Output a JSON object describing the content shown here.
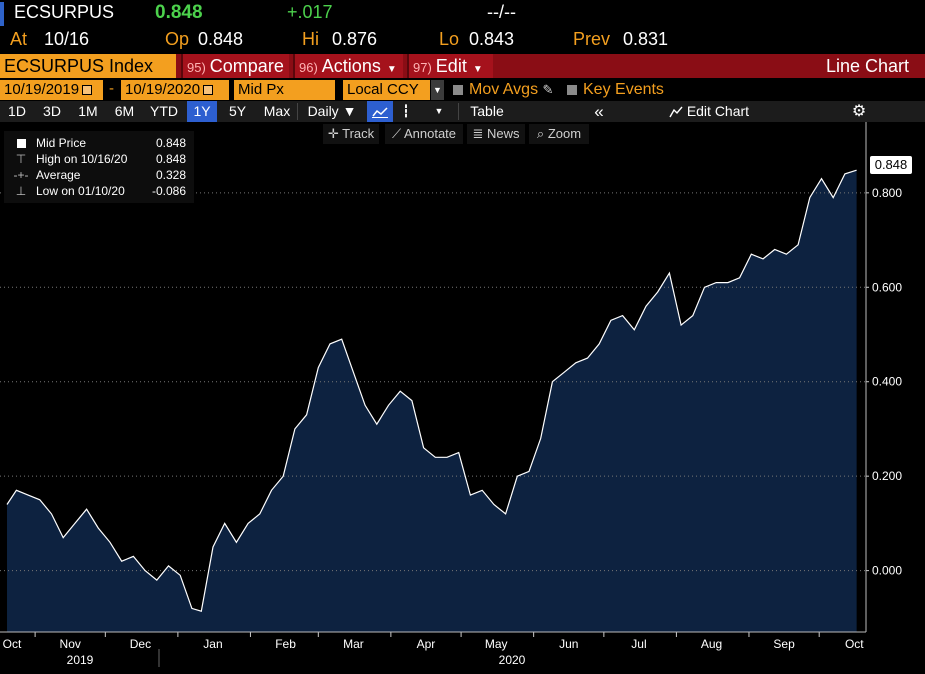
{
  "ticker": {
    "symbol": "ECSURPUS",
    "last": "0.848",
    "change": "+.017",
    "time": "--/--"
  },
  "quote": {
    "at_label": "At",
    "at_value": "10/16",
    "op_label": "Op",
    "op_value": "0.848",
    "hi_label": "Hi",
    "hi_value": "0.876",
    "lo_label": "Lo",
    "lo_value": "0.843",
    "prev_label": "Prev",
    "prev_value": "0.831"
  },
  "function_bar": {
    "security": "ECSURPUS Index",
    "compare_num": "95)",
    "compare_label": "Compare",
    "actions_num": "96)",
    "actions_label": "Actions",
    "edit_num": "97)",
    "edit_label": "Edit",
    "chart_type": "Line Chart"
  },
  "params": {
    "start_date": "10/19/2019",
    "date_sep": "-",
    "end_date": "10/19/2020",
    "field": "Mid Px",
    "currency": "Local CCY",
    "mov_avgs": "Mov Avgs",
    "key_events": "Key Events"
  },
  "periods": [
    "1D",
    "3D",
    "1M",
    "6M",
    "YTD",
    "1Y",
    "5Y",
    "Max"
  ],
  "selected_period": "1Y",
  "toolbar": {
    "frequency": "Daily",
    "frequency_caret": "▼",
    "table": "Table",
    "edit_chart": "Edit Chart",
    "collapse": "«",
    "gear": "⚙"
  },
  "chart_tools": {
    "track": "Track",
    "annotate": "Annotate",
    "news": "News",
    "zoom": "Zoom"
  },
  "legend": {
    "mid_label": "Mid Price",
    "mid_value": "0.848",
    "high_label": "High on 10/16/20",
    "high_value": "0.848",
    "avg_label": "Average",
    "avg_value": "0.328",
    "low_label": "Low on 01/10/20",
    "low_value": "-0.086"
  },
  "last_price_tag": "0.848",
  "colors": {
    "accent_orange": "#f39f1f",
    "function_red": "#8a0d15",
    "up_green": "#4cd14c",
    "selected_blue": "#2d5fd0",
    "area_fill": "#0d2240"
  },
  "chart_data": {
    "type": "area",
    "series": [
      {
        "name": "Mid Price",
        "x": [
          "2019-10-19",
          "2019-10-23",
          "2019-10-28",
          "2019-11-02",
          "2019-11-07",
          "2019-11-12",
          "2019-11-17",
          "2019-11-22",
          "2019-11-27",
          "2019-12-02",
          "2019-12-07",
          "2019-12-12",
          "2019-12-17",
          "2019-12-22",
          "2019-12-27",
          "2020-01-01",
          "2020-01-06",
          "2020-01-10",
          "2020-01-15",
          "2020-01-20",
          "2020-01-25",
          "2020-01-30",
          "2020-02-04",
          "2020-02-09",
          "2020-02-14",
          "2020-02-19",
          "2020-02-24",
          "2020-02-29",
          "2020-03-05",
          "2020-03-10",
          "2020-03-15",
          "2020-03-20",
          "2020-03-25",
          "2020-03-30",
          "2020-04-04",
          "2020-04-09",
          "2020-04-14",
          "2020-04-19",
          "2020-04-24",
          "2020-04-29",
          "2020-05-04",
          "2020-05-09",
          "2020-05-14",
          "2020-05-19",
          "2020-05-24",
          "2020-05-29",
          "2020-06-03",
          "2020-06-08",
          "2020-06-13",
          "2020-06-18",
          "2020-06-23",
          "2020-06-28",
          "2020-07-03",
          "2020-07-08",
          "2020-07-13",
          "2020-07-18",
          "2020-07-23",
          "2020-07-28",
          "2020-08-02",
          "2020-08-07",
          "2020-08-12",
          "2020-08-17",
          "2020-08-22",
          "2020-08-27",
          "2020-09-01",
          "2020-09-06",
          "2020-09-11",
          "2020-09-16",
          "2020-09-21",
          "2020-09-26",
          "2020-10-01",
          "2020-10-06",
          "2020-10-11",
          "2020-10-16"
        ],
        "y": [
          0.14,
          0.17,
          0.16,
          0.15,
          0.12,
          0.07,
          0.1,
          0.13,
          0.09,
          0.06,
          0.02,
          0.03,
          0.0,
          -0.02,
          0.01,
          -0.01,
          -0.08,
          -0.086,
          0.05,
          0.1,
          0.06,
          0.1,
          0.12,
          0.17,
          0.2,
          0.3,
          0.33,
          0.43,
          0.48,
          0.49,
          0.42,
          0.35,
          0.31,
          0.35,
          0.38,
          0.36,
          0.26,
          0.24,
          0.24,
          0.25,
          0.16,
          0.17,
          0.14,
          0.12,
          0.2,
          0.21,
          0.28,
          0.4,
          0.42,
          0.44,
          0.45,
          0.48,
          0.53,
          0.54,
          0.51,
          0.56,
          0.59,
          0.63,
          0.52,
          0.54,
          0.6,
          0.61,
          0.61,
          0.62,
          0.67,
          0.66,
          0.68,
          0.67,
          0.69,
          0.79,
          0.83,
          0.79,
          0.84,
          0.848
        ]
      }
    ],
    "x_tick_labels": [
      "Oct",
      "Nov",
      "Dec",
      "Jan",
      "Feb",
      "Mar",
      "Apr",
      "May",
      "Jun",
      "Jul",
      "Aug",
      "Sep",
      "Oct"
    ],
    "x_year_labels": [
      "2019",
      "2020"
    ],
    "y_tick_labels": [
      "0.000",
      "0.200",
      "0.400",
      "0.600",
      "0.800"
    ],
    "y_ticks": [
      0,
      0.2,
      0.4,
      0.6,
      0.8
    ],
    "ylim": [
      -0.13,
      0.95
    ],
    "xlim": [
      "2019-10-16",
      "2020-10-20"
    ],
    "grid": true,
    "legend_position": "top-left"
  }
}
